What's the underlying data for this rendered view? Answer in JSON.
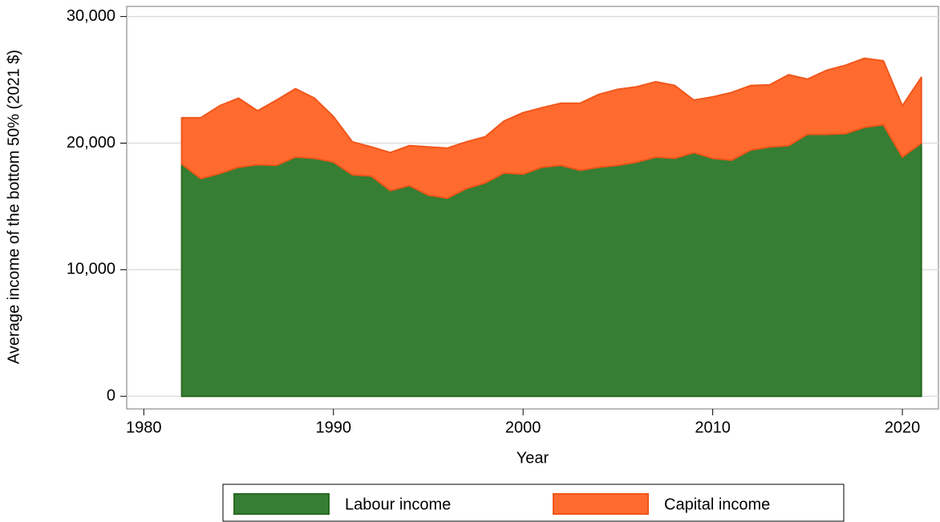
{
  "chart_data": {
    "type": "stacked_area",
    "y_label": "Average income of the bottom 50% (2021 $)",
    "x_label": "Year",
    "x": [
      1982,
      1983,
      1984,
      1985,
      1986,
      1987,
      1988,
      1989,
      1990,
      1991,
      1992,
      1993,
      1994,
      1995,
      1996,
      1997,
      1998,
      1999,
      2000,
      2001,
      2002,
      2003,
      2004,
      2005,
      2006,
      2007,
      2008,
      2009,
      2010,
      2011,
      2012,
      2013,
      2014,
      2015,
      2016,
      2017,
      2018,
      2019,
      2020,
      2021
    ],
    "series": [
      {
        "name": "Labour income",
        "color": "#367e33",
        "values": [
          18350,
          17200,
          17600,
          18100,
          18300,
          18250,
          18900,
          18800,
          18500,
          17500,
          17400,
          16250,
          16650,
          15900,
          15650,
          16400,
          16850,
          17650,
          17550,
          18100,
          18250,
          17850,
          18100,
          18250,
          18500,
          18900,
          18800,
          19250,
          18800,
          18650,
          19450,
          19700,
          19800,
          20700,
          20700,
          20750,
          21250,
          21450,
          18900,
          20000
        ]
      },
      {
        "name": "Capital income",
        "color": "#ff6a2f",
        "values": [
          3650,
          4800,
          5350,
          5450,
          4250,
          5150,
          5400,
          4750,
          3600,
          2600,
          2300,
          3000,
          3150,
          3800,
          3950,
          3700,
          3650,
          4100,
          4850,
          4700,
          4900,
          5300,
          5750,
          6000,
          5950,
          5950,
          5750,
          4150,
          4850,
          5350,
          5100,
          4900,
          5600,
          4350,
          5050,
          5400,
          5450,
          5050,
          4050,
          5200
        ]
      }
    ],
    "xlim": [
      1979.1,
      2021.9
    ],
    "xticks": [
      1980,
      1990,
      2000,
      2010,
      2020
    ],
    "ylim": [
      -1000,
      30800
    ],
    "yticks": [
      0,
      {
        "value": 10000,
        "label": "10,000"
      },
      {
        "value": 20000,
        "label": "20,000"
      },
      {
        "value": 30000,
        "label": "30,000"
      }
    ],
    "grid": true
  }
}
